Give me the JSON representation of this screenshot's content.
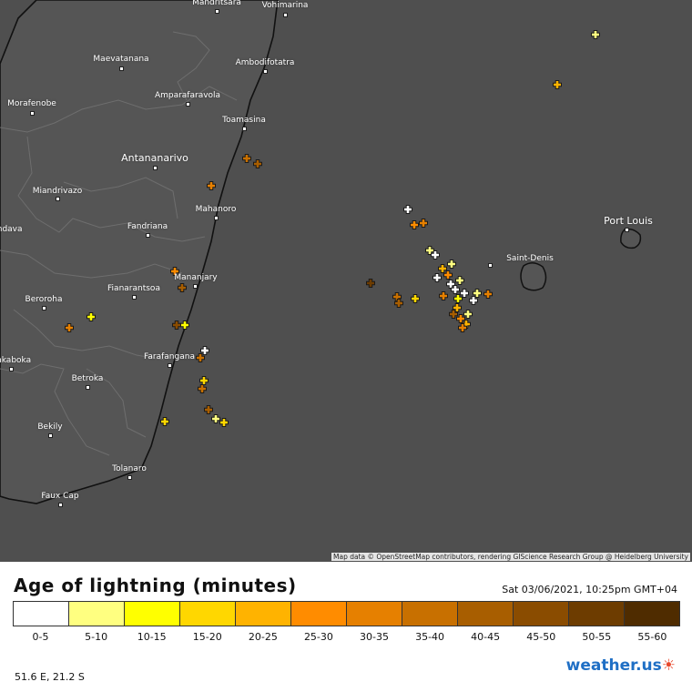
{
  "map": {
    "attribution": "Map data © OpenStreetMap contributors, rendering GIScience Research Group @ Heidelberg University",
    "land_color": "#4f4f4f",
    "places": [
      {
        "name": "Mandritsara"
      },
      {
        "name": "Vohimarina"
      },
      {
        "name": "Maevatanana"
      },
      {
        "name": "Ambodifotatra"
      },
      {
        "name": "Amparafaravola"
      },
      {
        "name": "Morafenobe"
      },
      {
        "name": "Toamasina"
      },
      {
        "name": "Antananarivo"
      },
      {
        "name": "Miandrivazo"
      },
      {
        "name": "Mahanoro"
      },
      {
        "name": "Fandriana"
      },
      {
        "name": "Mandava"
      },
      {
        "name": "Mananjary"
      },
      {
        "name": "Fianarantsoa"
      },
      {
        "name": "Beroroha"
      },
      {
        "name": "Farafangana"
      },
      {
        "name": "Ankaboka"
      },
      {
        "name": "Betroka"
      },
      {
        "name": "Bekily"
      },
      {
        "name": "Tolanaro"
      },
      {
        "name": "Faux Cap"
      },
      {
        "name": "Port Louis"
      },
      {
        "name": "Saint-Denis"
      }
    ]
  },
  "legend": {
    "title": "Age of lightning (minutes)",
    "timestamp": "Sat 03/06/2021, 10:25pm GMT+04",
    "bins": [
      {
        "label": "0-5",
        "color": "#ffffff"
      },
      {
        "label": "5-10",
        "color": "#ffff80"
      },
      {
        "label": "10-15",
        "color": "#ffff00"
      },
      {
        "label": "15-20",
        "color": "#ffd700"
      },
      {
        "label": "20-25",
        "color": "#ffb300"
      },
      {
        "label": "25-30",
        "color": "#ff8c00"
      },
      {
        "label": "30-35",
        "color": "#e68000"
      },
      {
        "label": "35-40",
        "color": "#c87000"
      },
      {
        "label": "40-45",
        "color": "#a85e00"
      },
      {
        "label": "45-50",
        "color": "#8a4c00"
      },
      {
        "label": "50-55",
        "color": "#6d3c00"
      },
      {
        "label": "55-60",
        "color": "#4f2c00"
      }
    ],
    "coords": "51.6 E, 21.2 S",
    "brand": "weather.us"
  }
}
